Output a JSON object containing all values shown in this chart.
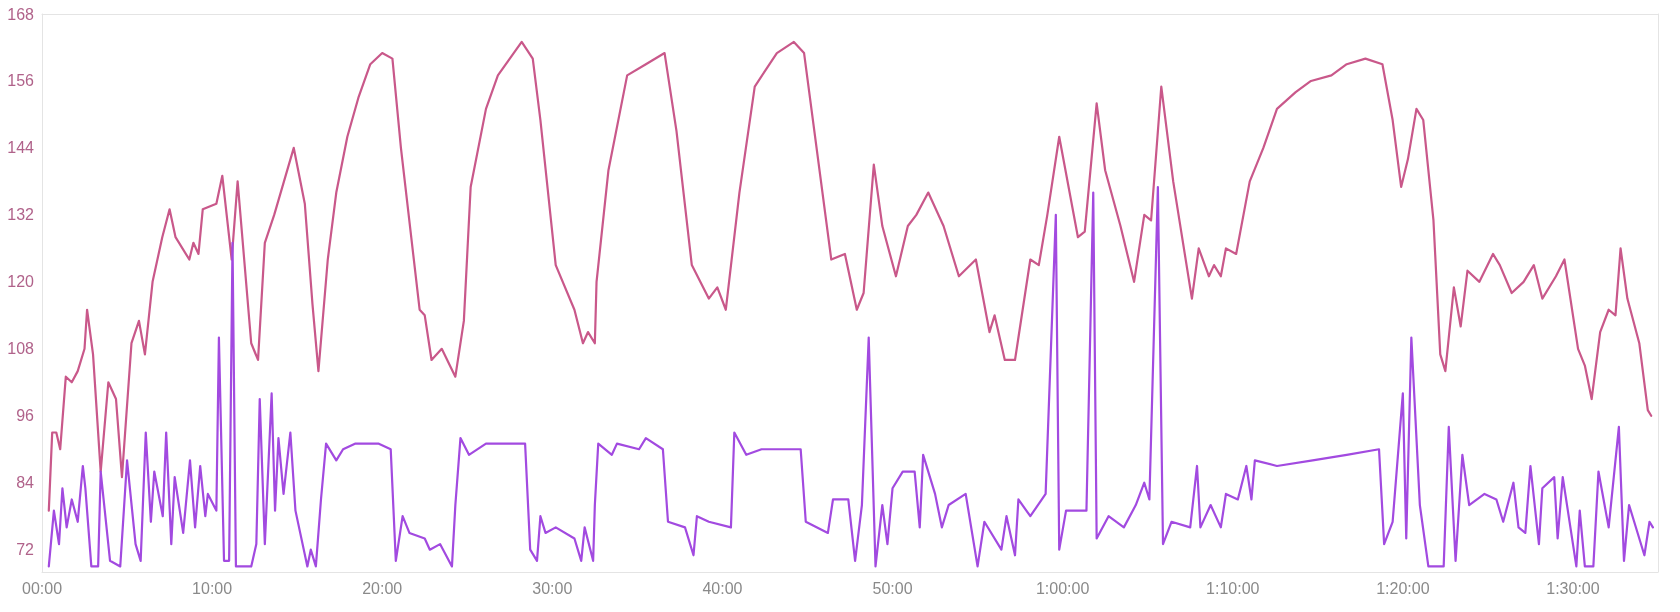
{
  "chart_data": {
    "type": "line",
    "xlim": [
      0,
      95
    ],
    "ylim": [
      68,
      168
    ],
    "xticks": [
      {
        "value": 0,
        "label": "00:00"
      },
      {
        "value": 10,
        "label": "10:00"
      },
      {
        "value": 20,
        "label": "20:00"
      },
      {
        "value": 30,
        "label": "30:00"
      },
      {
        "value": 40,
        "label": "40:00"
      },
      {
        "value": 50,
        "label": "50:00"
      },
      {
        "value": 60,
        "label": "1:00:00"
      },
      {
        "value": 70,
        "label": "1:10:00"
      },
      {
        "value": 80,
        "label": "1:20:00"
      },
      {
        "value": 90,
        "label": "1:30:00"
      }
    ],
    "yticks": [
      72,
      84,
      96,
      108,
      120,
      132,
      144,
      156,
      168
    ],
    "grid": false,
    "marker": "none",
    "line_style": "solid",
    "series": [
      {
        "color": "#c9588a",
        "x": [
          0.4,
          0.6,
          0.84,
          1.07,
          1.4,
          1.75,
          2.1,
          2.5,
          2.65,
          3.0,
          3.45,
          3.9,
          4.35,
          4.7,
          5.26,
          5.7,
          6.05,
          6.5,
          7.07,
          7.5,
          7.85,
          8.66,
          8.9,
          9.2,
          9.45,
          10.25,
          10.6,
          11.15,
          11.5,
          12.3,
          12.7,
          13.1,
          13.65,
          14.8,
          15.45,
          15.9,
          16.25,
          16.8,
          17.3,
          17.95,
          18.6,
          19.3,
          20.0,
          20.6,
          21.1,
          22.2,
          22.5,
          22.9,
          23.5,
          24.3,
          24.8,
          25.2,
          26.1,
          26.8,
          27.5,
          28.2,
          28.85,
          29.3,
          30.2,
          31.3,
          31.8,
          32.1,
          32.5,
          32.6,
          33.3,
          34.4,
          35.5,
          36.6,
          37.3,
          38.2,
          39.2,
          39.7,
          40.2,
          41.0,
          41.9,
          43.2,
          44.2,
          44.8,
          46.4,
          47.2,
          47.9,
          48.3,
          48.9,
          49.4,
          50.2,
          50.9,
          51.4,
          52.1,
          53.0,
          53.9,
          54.9,
          55.7,
          56.0,
          56.6,
          57.2,
          58.1,
          58.6,
          59.1,
          59.8,
          60.9,
          61.3,
          62.0,
          62.5,
          63.4,
          64.2,
          64.8,
          65.2,
          65.8,
          66.5,
          67.6,
          68.0,
          68.6,
          68.9,
          69.3,
          69.6,
          70.2,
          71.0,
          71.8,
          72.6,
          73.7,
          74.6,
          75.8,
          76.7,
          77.8,
          78.8,
          79.4,
          79.9,
          80.3,
          80.8,
          81.2,
          81.8,
          82.2,
          82.5,
          83.0,
          83.4,
          83.8,
          84.5,
          85.3,
          85.7,
          86.4,
          87.1,
          87.7,
          88.2,
          89.0,
          89.5,
          90.3,
          90.7,
          91.1,
          91.6,
          92.1,
          92.5,
          92.8,
          93.2,
          93.9,
          94.4,
          94.6
        ],
        "values": [
          79,
          93,
          93,
          90,
          103,
          102,
          104,
          108,
          115,
          107,
          86,
          102,
          99,
          85,
          109,
          113,
          107,
          120,
          128,
          133,
          128,
          124,
          127,
          125,
          133,
          134,
          139,
          124,
          138,
          109,
          106,
          127,
          132,
          144,
          134,
          116,
          104,
          124,
          136,
          146,
          153,
          159,
          161,
          160,
          144,
          115,
          114,
          106,
          108,
          103,
          113,
          137,
          151,
          157,
          160,
          163,
          160,
          149,
          123,
          115,
          109,
          111,
          109,
          120,
          140,
          157,
          159,
          161,
          147,
          123,
          117,
          119,
          115,
          136,
          155,
          161,
          163,
          161,
          124,
          125,
          115,
          118,
          141,
          130,
          121,
          130,
          132,
          136,
          130,
          121,
          124,
          111,
          114,
          106,
          106,
          124,
          123,
          132,
          146,
          128,
          129,
          152,
          140,
          130,
          120,
          132,
          131,
          155,
          138,
          117,
          126,
          121,
          123,
          121,
          126,
          125,
          138,
          144,
          151,
          154,
          156,
          157,
          159,
          160,
          159,
          149,
          137,
          142,
          151,
          149,
          131,
          107,
          104,
          119,
          112,
          122,
          120,
          125,
          123,
          118,
          120,
          123,
          117,
          121,
          124,
          108,
          105,
          99,
          111,
          115,
          114,
          126,
          117,
          109,
          97,
          96
        ]
      },
      {
        "color": "#a24ae0",
        "x": [
          0.4,
          0.7,
          1.0,
          1.2,
          1.45,
          1.75,
          2.1,
          2.4,
          2.55,
          2.9,
          3.3,
          3.45,
          4.0,
          4.6,
          5.0,
          5.5,
          5.8,
          6.1,
          6.4,
          6.6,
          7.1,
          7.3,
          7.6,
          7.8,
          8.3,
          8.7,
          9.0,
          9.3,
          9.6,
          9.75,
          10.25,
          10.4,
          10.7,
          11.0,
          11.2,
          11.4,
          12.3,
          12.6,
          12.8,
          13.1,
          13.5,
          13.7,
          13.9,
          14.2,
          14.6,
          14.9,
          15.6,
          15.8,
          16.1,
          16.4,
          16.7,
          17.3,
          17.7,
          18.4,
          19.8,
          20.5,
          20.8,
          21.2,
          21.6,
          22.5,
          22.8,
          23.4,
          24.1,
          24.3,
          24.6,
          25.1,
          26.1,
          28.4,
          28.7,
          29.1,
          29.3,
          29.6,
          30.2,
          31.3,
          31.7,
          31.9,
          32.4,
          32.5,
          32.7,
          33.5,
          33.8,
          35.1,
          35.5,
          36.5,
          36.8,
          37.8,
          38.3,
          38.5,
          39.2,
          40.5,
          40.7,
          41.4,
          42.3,
          44.6,
          44.9,
          46.2,
          46.5,
          47.4,
          47.8,
          48.2,
          48.6,
          49.0,
          49.4,
          49.7,
          50.0,
          50.6,
          51.3,
          51.6,
          51.8,
          52.5,
          52.9,
          53.3,
          54.3,
          55.0,
          55.4,
          56.4,
          56.7,
          57.2,
          57.4,
          58.1,
          59.0,
          59.6,
          59.8,
          60.2,
          61.4,
          61.8,
          62.0,
          62.7,
          63.6,
          64.3,
          64.8,
          65.1,
          65.6,
          65.9,
          66.4,
          67.5,
          67.9,
          68.1,
          68.7,
          69.3,
          69.6,
          70.3,
          70.8,
          71.1,
          71.3,
          72.6,
          74.7,
          76.7,
          78.6,
          78.9,
          79.4,
          80.0,
          80.2,
          80.5,
          81.0,
          81.5,
          82.4,
          82.7,
          83.1,
          83.5,
          83.9,
          84.8,
          85.5,
          85.9,
          86.5,
          86.8,
          87.2,
          87.5,
          88.0,
          88.2,
          88.9,
          89.1,
          89.4,
          90.2,
          90.4,
          90.7,
          91.2,
          91.5,
          92.1,
          92.7,
          93.0,
          93.3,
          93.6,
          94.2,
          94.5,
          94.7
        ],
        "values": [
          69,
          79,
          73,
          83,
          76,
          81,
          77,
          87,
          83,
          69,
          69,
          86,
          70,
          69,
          88,
          73,
          70,
          93,
          77,
          86,
          78,
          93,
          73,
          85,
          75,
          88,
          76,
          87,
          78,
          82,
          79,
          110,
          70,
          70,
          127,
          69,
          69,
          73,
          99,
          73,
          100,
          79,
          92,
          82,
          93,
          79,
          69,
          72,
          69,
          81,
          91,
          88,
          90,
          91,
          91,
          90,
          70,
          78,
          75,
          74,
          72,
          73,
          69,
          80,
          92,
          89,
          91,
          91,
          72,
          70,
          78,
          75,
          76,
          74,
          70,
          76,
          70,
          80,
          91,
          89,
          91,
          90,
          92,
          90,
          77,
          76,
          71,
          78,
          77,
          76,
          93,
          89,
          90,
          90,
          77,
          75,
          81,
          81,
          70,
          80,
          110,
          69,
          80,
          73,
          83,
          86,
          86,
          76,
          89,
          82,
          76,
          80,
          82,
          69,
          77,
          72,
          78,
          71,
          81,
          78,
          82,
          132,
          72,
          79,
          79,
          136,
          74,
          78,
          76,
          80,
          84,
          81,
          137,
          73,
          77,
          76,
          87,
          76,
          80,
          76,
          82,
          81,
          87,
          81,
          88,
          87,
          88,
          89,
          90,
          73,
          77,
          100,
          74,
          110,
          80,
          69,
          69,
          94,
          70,
          89,
          80,
          82,
          81,
          77,
          84,
          76,
          75,
          87,
          73,
          83,
          85,
          74,
          85,
          69,
          79,
          69,
          69,
          86,
          76,
          94,
          70,
          80,
          77,
          71,
          77,
          76
        ]
      }
    ]
  }
}
